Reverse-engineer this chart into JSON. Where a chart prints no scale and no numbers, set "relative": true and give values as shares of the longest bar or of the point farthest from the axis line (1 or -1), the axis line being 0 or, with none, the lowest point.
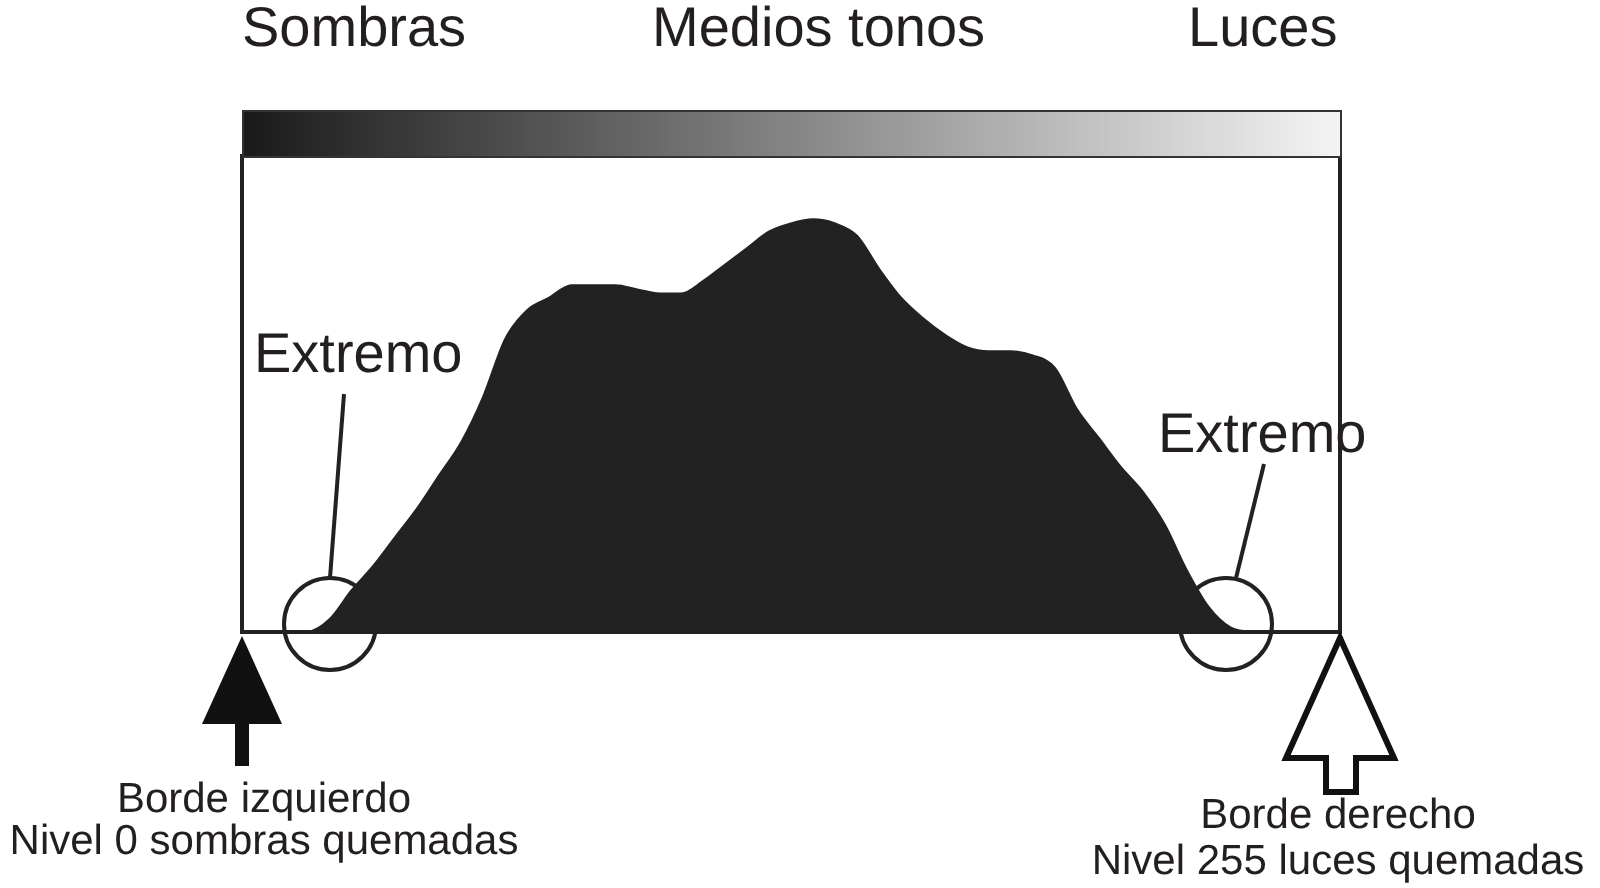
{
  "chart_data": {
    "type": "area",
    "relative": true,
    "categories": [
      null,
      null,
      null,
      null,
      null,
      null,
      null,
      null,
      null,
      null,
      null,
      null,
      null,
      null,
      null,
      null,
      null,
      null,
      null,
      null,
      null,
      null,
      null,
      null,
      null,
      null,
      null,
      null,
      null,
      null,
      null,
      null,
      null,
      null,
      null,
      null,
      null,
      null,
      null,
      null,
      null,
      null,
      null,
      null,
      null,
      null,
      null,
      null,
      null,
      null,
      null
    ],
    "values": [
      0,
      0,
      0,
      0,
      0.03,
      0.1,
      0.16,
      0.23,
      0.3,
      0.38,
      0.46,
      0.57,
      0.71,
      0.78,
      0.81,
      0.84,
      0.84,
      0.84,
      0.83,
      0.82,
      0.82,
      0.85,
      0.89,
      0.93,
      0.97,
      0.99,
      1,
      0.99,
      0.96,
      0.88,
      0.81,
      0.76,
      0.72,
      0.69,
      0.68,
      0.68,
      0.67,
      0.64,
      0.54,
      0.47,
      0.4,
      0.34,
      0.26,
      0.15,
      0.06,
      0.01,
      0,
      0,
      0,
      0,
      0
    ],
    "color": "#222222",
    "legend": false,
    "annotations": [
      "Sombras",
      "Medios tonos",
      "Luces",
      "Extremo",
      "Extremo",
      "Borde izquierdo\nNivel 0 sombras quemadas",
      "Borde derecho\nNivel 255 luces quemadas"
    ]
  }
}
